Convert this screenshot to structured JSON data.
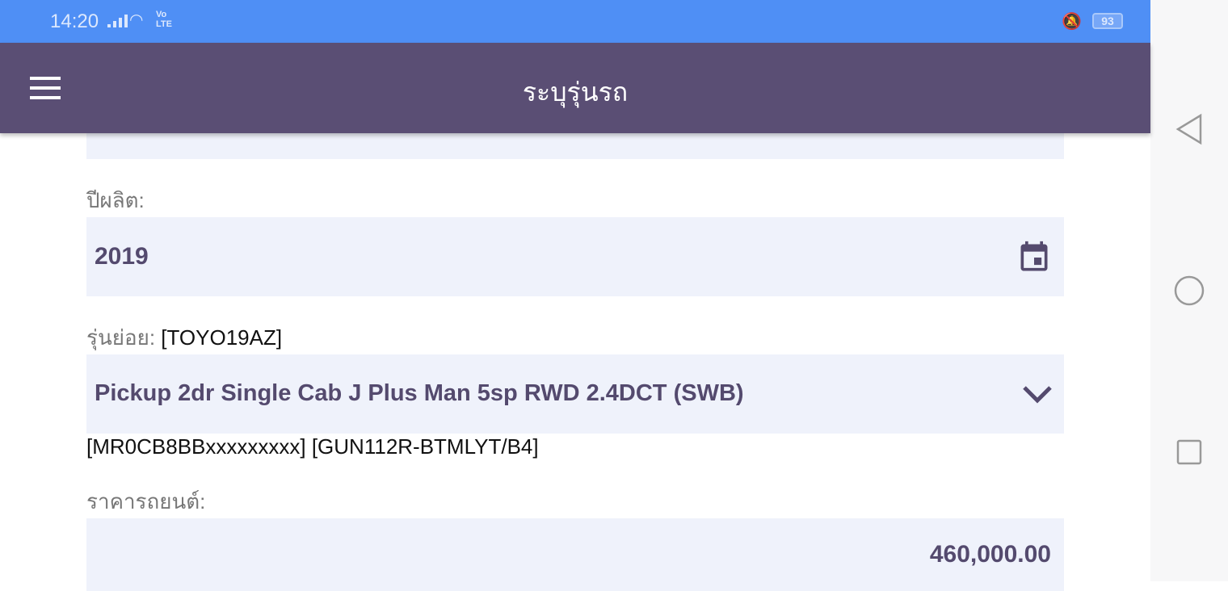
{
  "status_bar": {
    "time": "14:20",
    "volte": "Vo LTE",
    "battery": "93",
    "icons": [
      "signal-icon",
      "wifi-icon",
      "vibrate-icon",
      "battery-icon"
    ]
  },
  "app_bar": {
    "title": "ระบุรุ่นรถ",
    "menu_icon": "hamburger-icon"
  },
  "form": {
    "year_label": "ปีผลิต:",
    "year_value": "2019",
    "submodel_label": "รุ่นย่อย:",
    "submodel_code": "[TOYO19AZ]",
    "submodel_value": "Pickup 2dr Single Cab J Plus Man 5sp RWD 2.4DCT (SWB)",
    "submodel_detail": "[MR0CB8BBxxxxxxxxx] [GUN112R-BTMLYT/B4]",
    "price_label": "ราคารถยนต์:",
    "price_value": "460,000.00"
  },
  "colors": {
    "status_bar": "#4f8ff5",
    "app_bar": "#5a4e74",
    "field_bg": "#eff2fb",
    "field_text": "#544a6e"
  }
}
